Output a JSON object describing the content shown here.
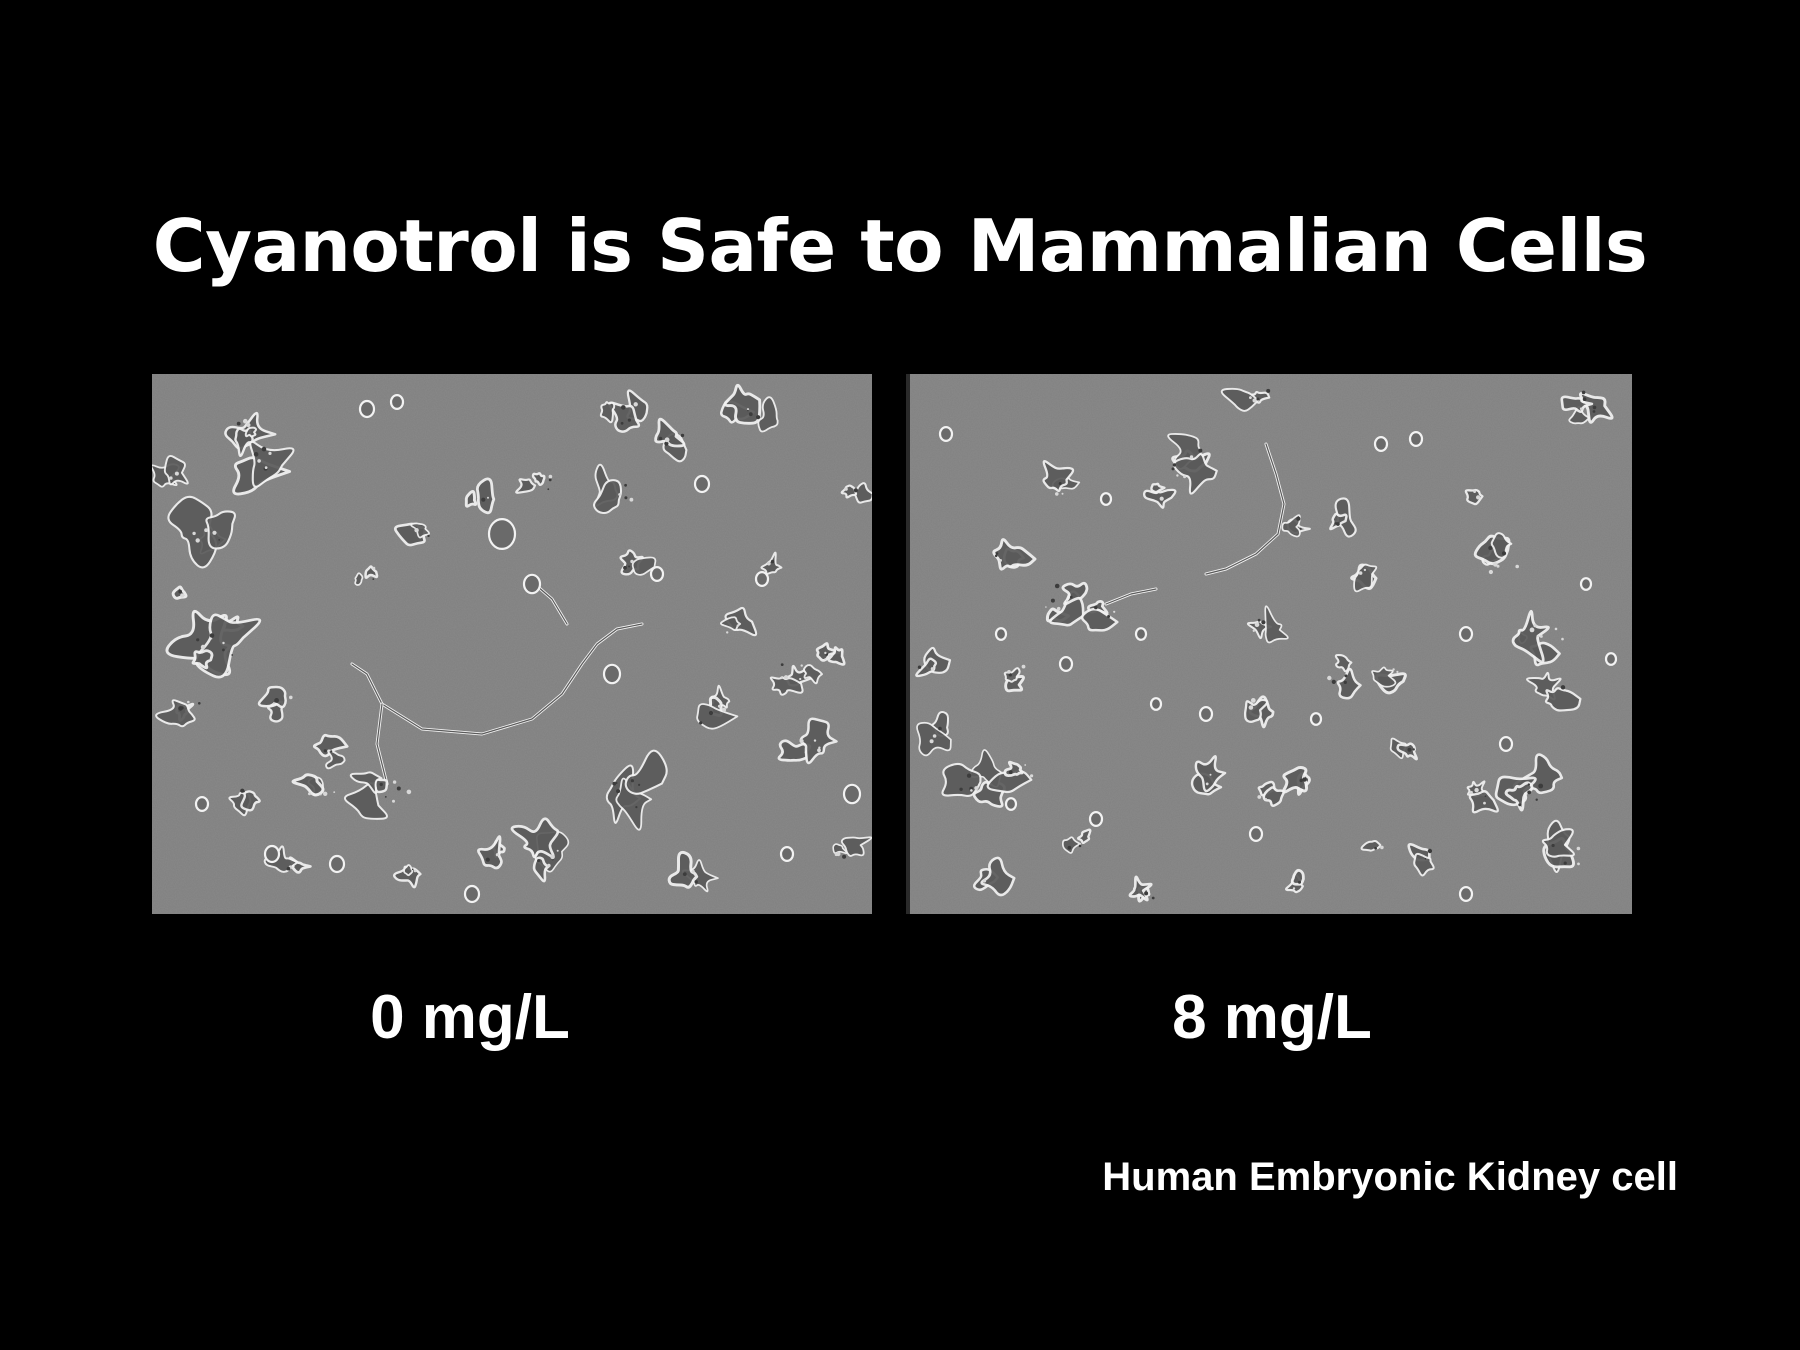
{
  "slide": {
    "title": "Cyanotrol is Safe to Mammalian Cells",
    "background_color": "#000000",
    "text_color": "#ffffff"
  },
  "panels": [
    {
      "image_description": "phase-contrast micrograph of cells, untreated",
      "label": "0 mg/L"
    },
    {
      "image_description": "phase-contrast micrograph of cells, treated",
      "label": "8 mg/L"
    }
  ],
  "caption": "Human Embryonic Kidney cell",
  "colors": {
    "micrograph_background": "#7f7f7f",
    "cell_outline": "#f2f2f2",
    "cell_interior": "#5a5a5a"
  }
}
